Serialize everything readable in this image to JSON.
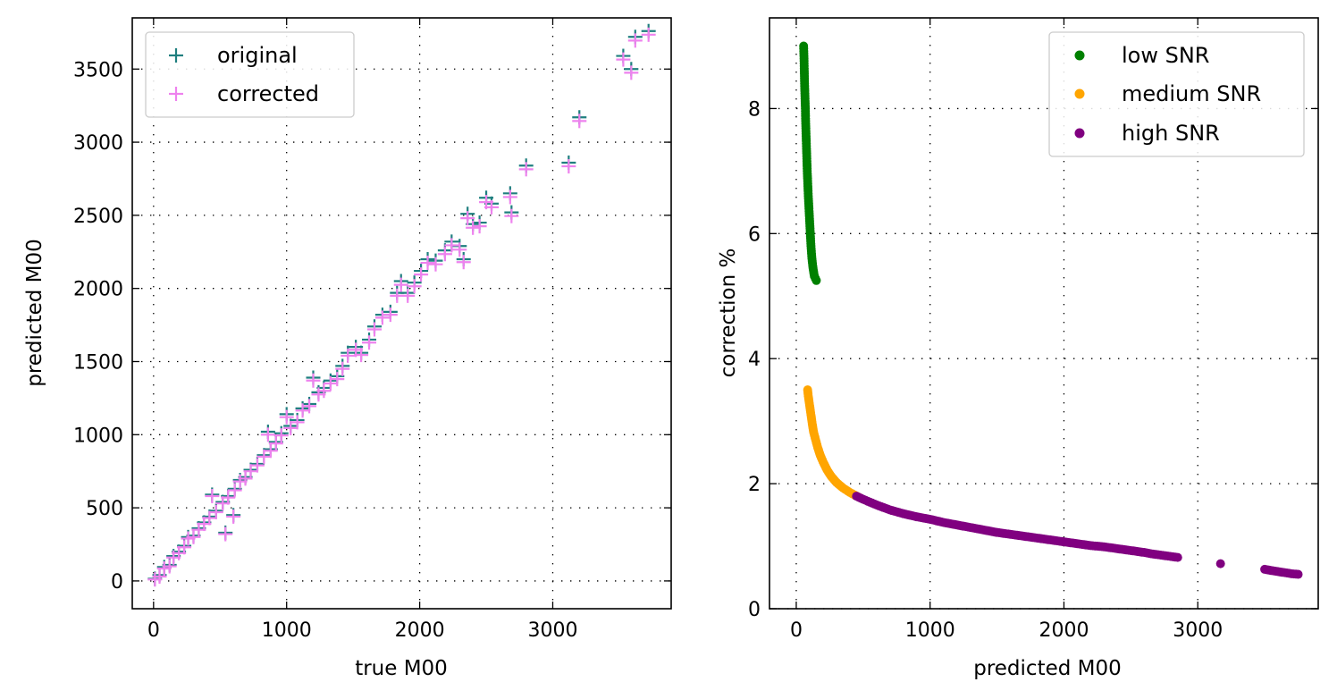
{
  "chart_data": [
    {
      "type": "scatter",
      "xlabel": "true M00",
      "ylabel": "predicted M00",
      "xlim": [
        -160,
        3890
      ],
      "ylim": [
        -190,
        3850
      ],
      "xticks": [
        0,
        1000,
        2000,
        3000
      ],
      "yticks": [
        0,
        500,
        1000,
        1500,
        2000,
        2500,
        3000,
        3500
      ],
      "grid": true,
      "legend_position": "top-left",
      "series": [
        {
          "name": "original",
          "marker": "+",
          "color": "#1f7f7f",
          "points": [
            [
              10,
              15
            ],
            [
              45,
              40
            ],
            [
              80,
              95
            ],
            [
              120,
              110
            ],
            [
              150,
              170
            ],
            [
              190,
              200
            ],
            [
              230,
              240
            ],
            [
              260,
              300
            ],
            [
              300,
              310
            ],
            [
              340,
              360
            ],
            [
              380,
              400
            ],
            [
              420,
              440
            ],
            [
              440,
              590
            ],
            [
              470,
              480
            ],
            [
              520,
              540
            ],
            [
              540,
              330
            ],
            [
              560,
              580
            ],
            [
              600,
              450
            ],
            [
              610,
              630
            ],
            [
              650,
              690
            ],
            [
              690,
              710
            ],
            [
              730,
              760
            ],
            [
              780,
              800
            ],
            [
              830,
              860
            ],
            [
              860,
              1020
            ],
            [
              880,
              900
            ],
            [
              920,
              950
            ],
            [
              960,
              1010
            ],
            [
              1000,
              1140
            ],
            [
              1030,
              1060
            ],
            [
              1080,
              1100
            ],
            [
              1120,
              1180
            ],
            [
              1170,
              1210
            ],
            [
              1200,
              1390
            ],
            [
              1240,
              1290
            ],
            [
              1280,
              1320
            ],
            [
              1330,
              1370
            ],
            [
              1380,
              1400
            ],
            [
              1420,
              1470
            ],
            [
              1460,
              1560
            ],
            [
              1520,
              1600
            ],
            [
              1560,
              1560
            ],
            [
              1620,
              1650
            ],
            [
              1660,
              1740
            ],
            [
              1720,
              1820
            ],
            [
              1780,
              1840
            ],
            [
              1830,
              1970
            ],
            [
              1860,
              2050
            ],
            [
              1910,
              1970
            ],
            [
              1960,
              2040
            ],
            [
              2010,
              2120
            ],
            [
              2060,
              2200
            ],
            [
              2120,
              2190
            ],
            [
              2190,
              2260
            ],
            [
              2240,
              2320
            ],
            [
              2300,
              2290
            ],
            [
              2330,
              2200
            ],
            [
              2360,
              2510
            ],
            [
              2400,
              2440
            ],
            [
              2450,
              2450
            ],
            [
              2500,
              2620
            ],
            [
              2540,
              2580
            ],
            [
              2680,
              2650
            ],
            [
              2690,
              2520
            ],
            [
              2800,
              2840
            ],
            [
              3120,
              2860
            ],
            [
              3200,
              3170
            ],
            [
              3530,
              3590
            ],
            [
              3590,
              3500
            ],
            [
              3620,
              3720
            ],
            [
              3720,
              3760
            ]
          ]
        },
        {
          "name": "corrected",
          "marker": "+",
          "color": "#ee82ee",
          "points": [
            [
              10,
              10
            ],
            [
              45,
              30
            ],
            [
              80,
              85
            ],
            [
              120,
              100
            ],
            [
              150,
              160
            ],
            [
              190,
              190
            ],
            [
              230,
              230
            ],
            [
              260,
              290
            ],
            [
              300,
              300
            ],
            [
              340,
              350
            ],
            [
              380,
              390
            ],
            [
              420,
              430
            ],
            [
              440,
              580
            ],
            [
              470,
              470
            ],
            [
              520,
              530
            ],
            [
              540,
              320
            ],
            [
              560,
              570
            ],
            [
              600,
              440
            ],
            [
              610,
              620
            ],
            [
              650,
              680
            ],
            [
              690,
              700
            ],
            [
              730,
              750
            ],
            [
              780,
              790
            ],
            [
              830,
              850
            ],
            [
              860,
              1000
            ],
            [
              880,
              890
            ],
            [
              920,
              940
            ],
            [
              960,
              995
            ],
            [
              1000,
              1120
            ],
            [
              1030,
              1045
            ],
            [
              1080,
              1085
            ],
            [
              1120,
              1165
            ],
            [
              1170,
              1195
            ],
            [
              1200,
              1370
            ],
            [
              1240,
              1275
            ],
            [
              1280,
              1300
            ],
            [
              1330,
              1350
            ],
            [
              1380,
              1380
            ],
            [
              1420,
              1450
            ],
            [
              1460,
              1540
            ],
            [
              1520,
              1580
            ],
            [
              1560,
              1545
            ],
            [
              1620,
              1630
            ],
            [
              1660,
              1720
            ],
            [
              1720,
              1800
            ],
            [
              1780,
              1820
            ],
            [
              1830,
              1950
            ],
            [
              1860,
              2025
            ],
            [
              1910,
              1950
            ],
            [
              1960,
              2015
            ],
            [
              2010,
              2095
            ],
            [
              2060,
              2175
            ],
            [
              2120,
              2165
            ],
            [
              2190,
              2235
            ],
            [
              2240,
              2295
            ],
            [
              2300,
              2265
            ],
            [
              2330,
              2180
            ],
            [
              2360,
              2480
            ],
            [
              2400,
              2415
            ],
            [
              2450,
              2425
            ],
            [
              2500,
              2590
            ],
            [
              2540,
              2555
            ],
            [
              2680,
              2625
            ],
            [
              2690,
              2495
            ],
            [
              2800,
              2815
            ],
            [
              3120,
              2835
            ],
            [
              3200,
              3145
            ],
            [
              3530,
              3565
            ],
            [
              3590,
              3475
            ],
            [
              3620,
              3695
            ],
            [
              3720,
              3735
            ]
          ]
        }
      ]
    },
    {
      "type": "scatter",
      "xlabel": "predicted M00",
      "ylabel": "correction %",
      "xlim": [
        -200,
        3900
      ],
      "ylim": [
        0,
        9.45
      ],
      "xticks": [
        0,
        1000,
        2000,
        3000
      ],
      "yticks": [
        0,
        2,
        4,
        6,
        8
      ],
      "grid": true,
      "legend_position": "top-right",
      "series": [
        {
          "name": "low SNR",
          "marker": "o",
          "color": "#008000",
          "points": [
            [
              55,
              9.0
            ],
            [
              58,
              8.8
            ],
            [
              60,
              8.6
            ],
            [
              62,
              8.4
            ],
            [
              65,
              8.2
            ],
            [
              68,
              8.0
            ],
            [
              70,
              7.8
            ],
            [
              73,
              7.6
            ],
            [
              76,
              7.4
            ],
            [
              79,
              7.2
            ],
            [
              82,
              7.0
            ],
            [
              86,
              6.8
            ],
            [
              90,
              6.6
            ],
            [
              95,
              6.4
            ],
            [
              100,
              6.2
            ],
            [
              105,
              6.0
            ],
            [
              110,
              5.8
            ],
            [
              117,
              5.6
            ],
            [
              125,
              5.45
            ],
            [
              135,
              5.32
            ],
            [
              150,
              5.25
            ]
          ]
        },
        {
          "name": "medium SNR",
          "marker": "o",
          "color": "#ffa500",
          "points": [
            [
              85,
              3.5
            ],
            [
              90,
              3.4
            ],
            [
              100,
              3.25
            ],
            [
              110,
              3.1
            ],
            [
              120,
              2.95
            ],
            [
              130,
              2.82
            ],
            [
              145,
              2.7
            ],
            [
              160,
              2.58
            ],
            [
              180,
              2.45
            ],
            [
              200,
              2.35
            ],
            [
              230,
              2.22
            ],
            [
              260,
              2.12
            ],
            [
              300,
              2.02
            ],
            [
              350,
              1.93
            ],
            [
              400,
              1.86
            ],
            [
              470,
              1.78
            ]
          ]
        },
        {
          "name": "high SNR",
          "marker": "o",
          "color": "#800080",
          "points": [
            [
              450,
              1.8
            ],
            [
              500,
              1.75
            ],
            [
              600,
              1.66
            ],
            [
              700,
              1.58
            ],
            [
              800,
              1.52
            ],
            [
              900,
              1.47
            ],
            [
              1000,
              1.43
            ],
            [
              1100,
              1.38
            ],
            [
              1200,
              1.34
            ],
            [
              1300,
              1.3
            ],
            [
              1400,
              1.26
            ],
            [
              1500,
              1.22
            ],
            [
              1600,
              1.19
            ],
            [
              1700,
              1.16
            ],
            [
              1800,
              1.13
            ],
            [
              1900,
              1.1
            ],
            [
              2000,
              1.07
            ],
            [
              2100,
              1.04
            ],
            [
              2200,
              1.01
            ],
            [
              2300,
              0.99
            ],
            [
              2400,
              0.96
            ],
            [
              2500,
              0.93
            ],
            [
              2600,
              0.9
            ],
            [
              2650,
              0.88
            ],
            [
              2850,
              0.82
            ],
            [
              3170,
              0.72
            ],
            [
              3500,
              0.63
            ],
            [
              3580,
              0.6
            ],
            [
              3700,
              0.56
            ],
            [
              3750,
              0.55
            ]
          ]
        }
      ]
    }
  ]
}
